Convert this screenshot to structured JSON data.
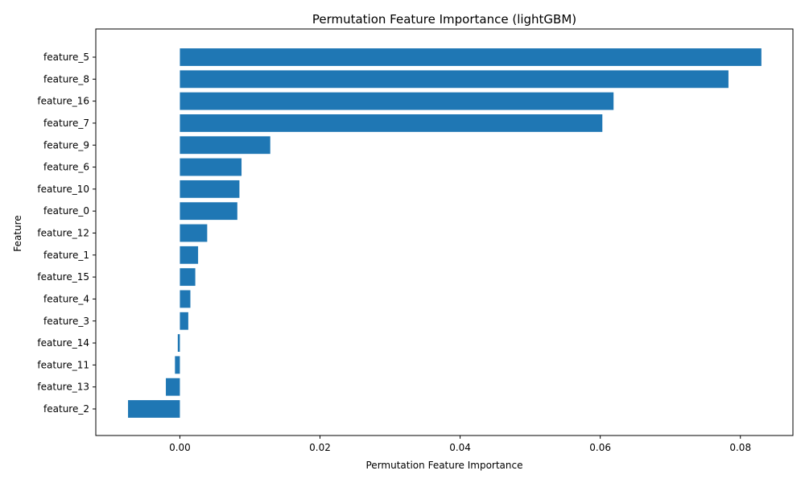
{
  "chart_data": {
    "type": "bar",
    "orientation": "horizontal",
    "title": "Permutation Feature Importance (lightGBM)",
    "xlabel": "Permutation Feature Importance",
    "ylabel": "Feature",
    "xlim": [
      -0.012,
      0.0875
    ],
    "xticks": [
      0.0,
      0.02,
      0.04,
      0.06,
      0.08
    ],
    "xtick_labels": [
      "0.00",
      "0.02",
      "0.04",
      "0.06",
      "0.08"
    ],
    "categories": [
      "feature_5",
      "feature_8",
      "feature_16",
      "feature_7",
      "feature_9",
      "feature_6",
      "feature_10",
      "feature_0",
      "feature_12",
      "feature_1",
      "feature_15",
      "feature_4",
      "feature_3",
      "feature_14",
      "feature_11",
      "feature_13",
      "feature_2"
    ],
    "values": [
      0.083,
      0.0783,
      0.0619,
      0.0603,
      0.0129,
      0.0088,
      0.0085,
      0.0082,
      0.0039,
      0.0026,
      0.0022,
      0.0015,
      0.0012,
      -0.0003,
      -0.0007,
      -0.002,
      -0.0074
    ],
    "bar_color": "#1f77b4",
    "grid": false,
    "legend": false
  }
}
